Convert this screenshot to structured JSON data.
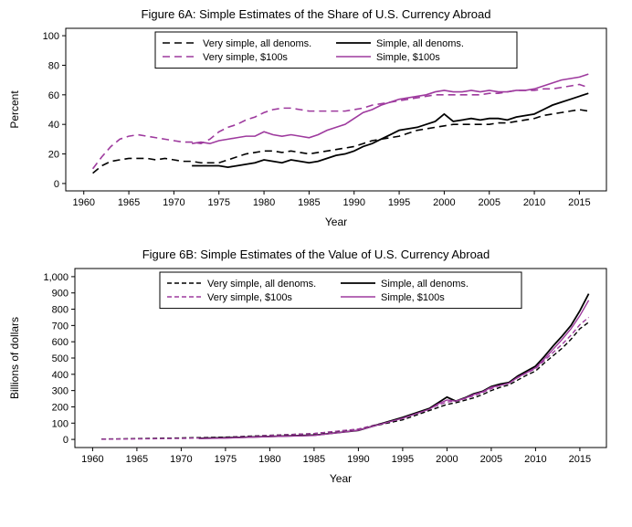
{
  "figure_a": {
    "title": "Figure 6A: Simple Estimates of the Share of U.S. Currency Abroad",
    "type": "line",
    "xlabel": "Year",
    "ylabel": "Percent",
    "xlim": [
      1958,
      2018
    ],
    "ylim": [
      -5,
      105
    ],
    "xticks": [
      1960,
      1965,
      1970,
      1975,
      1980,
      1985,
      1990,
      1995,
      2000,
      2005,
      2010,
      2015
    ],
    "yticks": [
      0,
      20,
      40,
      60,
      80,
      100
    ],
    "background_color": "#ffffff",
    "grid_color": "#000000",
    "title_fontsize": 13,
    "label_fontsize": 12,
    "tick_fontsize": 11,
    "legend": {
      "position": "top-center-inside",
      "items": [
        {
          "label": "Very simple, all denoms.",
          "color": "#000000",
          "dash": "8,5",
          "width": 1.6
        },
        {
          "label": "Simple, all denoms.",
          "color": "#000000",
          "dash": "",
          "width": 1.8
        },
        {
          "label": "Very simple, $100s",
          "color": "#9e3a9e",
          "dash": "8,5",
          "width": 1.6
        },
        {
          "label": "Simple, $100s",
          "color": "#9e3a9e",
          "dash": "",
          "width": 1.6
        }
      ]
    },
    "series": [
      {
        "name": "Very simple, all denoms.",
        "color": "#000000",
        "dash": "8,5",
        "width": 1.6,
        "x": [
          1961,
          1962,
          1963,
          1964,
          1965,
          1966,
          1967,
          1968,
          1969,
          1970,
          1971,
          1972,
          1973,
          1974,
          1975,
          1976,
          1977,
          1978,
          1979,
          1980,
          1981,
          1982,
          1983,
          1984,
          1985,
          1986,
          1987,
          1988,
          1989,
          1990,
          1991,
          1992,
          1993,
          1994,
          1995,
          1996,
          1997,
          1998,
          1999,
          2000,
          2001,
          2002,
          2003,
          2004,
          2005,
          2006,
          2007,
          2008,
          2009,
          2010,
          2011,
          2012,
          2013,
          2014,
          2015,
          2016
        ],
        "y": [
          7,
          12,
          15,
          16,
          17,
          17,
          17,
          16,
          17,
          16,
          15,
          15,
          14,
          14,
          14,
          16,
          18,
          20,
          21,
          22,
          22,
          21,
          22,
          21,
          20,
          21,
          22,
          23,
          24,
          25,
          27,
          29,
          30,
          31,
          32,
          34,
          36,
          37,
          38,
          39,
          40,
          40,
          40,
          40,
          40,
          41,
          41,
          42,
          43,
          44,
          46,
          47,
          48,
          49,
          50,
          49
        ]
      },
      {
        "name": "Very simple, $100s",
        "color": "#9e3a9e",
        "dash": "8,5",
        "width": 1.6,
        "x": [
          1961,
          1962,
          1963,
          1964,
          1965,
          1966,
          1967,
          1968,
          1969,
          1970,
          1971,
          1972,
          1973,
          1974,
          1975,
          1976,
          1977,
          1978,
          1979,
          1980,
          1981,
          1982,
          1983,
          1984,
          1985,
          1986,
          1987,
          1988,
          1989,
          1990,
          1991,
          1992,
          1993,
          1994,
          1995,
          1996,
          1997,
          1998,
          1999,
          2000,
          2001,
          2002,
          2003,
          2004,
          2005,
          2006,
          2007,
          2008,
          2009,
          2010,
          2011,
          2012,
          2013,
          2014,
          2015,
          2016
        ],
        "y": [
          10,
          18,
          25,
          30,
          32,
          33,
          32,
          31,
          30,
          29,
          28,
          28,
          27,
          30,
          35,
          38,
          40,
          43,
          45,
          48,
          50,
          51,
          51,
          50,
          49,
          49,
          49,
          49,
          49,
          50,
          51,
          53,
          54,
          55,
          56,
          57,
          58,
          59,
          60,
          60,
          60,
          60,
          60,
          60,
          61,
          61,
          62,
          63,
          63,
          63,
          64,
          64,
          65,
          66,
          67,
          65
        ]
      },
      {
        "name": "Simple, all denoms.",
        "color": "#000000",
        "dash": "",
        "width": 1.8,
        "x": [
          1972,
          1973,
          1974,
          1975,
          1976,
          1977,
          1978,
          1979,
          1980,
          1981,
          1982,
          1983,
          1984,
          1985,
          1986,
          1987,
          1988,
          1989,
          1990,
          1991,
          1992,
          1993,
          1994,
          1995,
          1996,
          1997,
          1998,
          1999,
          2000,
          2001,
          2002,
          2003,
          2004,
          2005,
          2006,
          2007,
          2008,
          2009,
          2010,
          2011,
          2012,
          2013,
          2014,
          2015,
          2016
        ],
        "y": [
          12,
          12,
          12,
          12,
          11,
          12,
          13,
          14,
          16,
          15,
          14,
          16,
          15,
          14,
          15,
          17,
          19,
          20,
          22,
          25,
          27,
          30,
          33,
          36,
          37,
          38,
          40,
          42,
          47,
          42,
          43,
          44,
          43,
          44,
          44,
          43,
          45,
          46,
          47,
          50,
          53,
          55,
          57,
          59,
          61
        ]
      },
      {
        "name": "Simple, $100s",
        "color": "#9e3a9e",
        "dash": "",
        "width": 1.6,
        "x": [
          1972,
          1973,
          1974,
          1975,
          1976,
          1977,
          1978,
          1979,
          1980,
          1981,
          1982,
          1983,
          1984,
          1985,
          1986,
          1987,
          1988,
          1989,
          1990,
          1991,
          1992,
          1993,
          1994,
          1995,
          1996,
          1997,
          1998,
          1999,
          2000,
          2001,
          2002,
          2003,
          2004,
          2005,
          2006,
          2007,
          2008,
          2009,
          2010,
          2011,
          2012,
          2013,
          2014,
          2015,
          2016
        ],
        "y": [
          27,
          28,
          27,
          29,
          30,
          31,
          32,
          32,
          35,
          33,
          32,
          33,
          32,
          31,
          33,
          36,
          38,
          40,
          44,
          48,
          50,
          53,
          55,
          57,
          58,
          59,
          60,
          62,
          63,
          62,
          62,
          63,
          62,
          63,
          62,
          62,
          63,
          63,
          64,
          66,
          68,
          70,
          71,
          72,
          74
        ]
      }
    ]
  },
  "figure_b": {
    "title": "Figure 6B: Simple Estimates of the Value of U.S. Currency Abroad",
    "type": "line",
    "xlabel": "Year",
    "ylabel": "Billions of dollars",
    "xlim": [
      1958,
      2018
    ],
    "ylim": [
      -50,
      1050
    ],
    "xticks": [
      1960,
      1965,
      1970,
      1975,
      1980,
      1985,
      1990,
      1995,
      2000,
      2005,
      2010,
      2015
    ],
    "yticks": [
      0,
      100,
      200,
      300,
      400,
      500,
      600,
      700,
      800,
      900,
      1000
    ],
    "background_color": "#ffffff",
    "grid_color": "#000000",
    "title_fontsize": 13,
    "label_fontsize": 12,
    "tick_fontsize": 11,
    "legend": {
      "position": "top-center-inside",
      "items": [
        {
          "label": "Very simple, all denoms.",
          "color": "#000000",
          "dash": "5,3",
          "width": 1.4
        },
        {
          "label": "Simple, all denoms.",
          "color": "#000000",
          "dash": "",
          "width": 1.8
        },
        {
          "label": "Very simple, $100s",
          "color": "#9e3a9e",
          "dash": "5,3",
          "width": 1.4
        },
        {
          "label": "Simple, $100s",
          "color": "#9e3a9e",
          "dash": "",
          "width": 1.4
        }
      ]
    },
    "series": [
      {
        "name": "Very simple, all denoms.",
        "color": "#000000",
        "dash": "5,3",
        "width": 1.4,
        "x": [
          1961,
          1965,
          1970,
          1975,
          1980,
          1985,
          1990,
          1995,
          2000,
          2001,
          2002,
          2003,
          2004,
          2005,
          2006,
          2007,
          2008,
          2009,
          2010,
          2011,
          2012,
          2013,
          2014,
          2015,
          2016
        ],
        "y": [
          2,
          5,
          9,
          14,
          25,
          36,
          62,
          120,
          215,
          225,
          240,
          255,
          275,
          300,
          320,
          335,
          365,
          395,
          420,
          470,
          515,
          560,
          615,
          680,
          720
        ]
      },
      {
        "name": "Very simple, $100s",
        "color": "#9e3a9e",
        "dash": "5,3",
        "width": 1.4,
        "x": [
          1961,
          1965,
          1970,
          1975,
          1980,
          1985,
          1990,
          1995,
          2000,
          2001,
          2002,
          2003,
          2004,
          2005,
          2006,
          2007,
          2008,
          2009,
          2010,
          2011,
          2012,
          2013,
          2014,
          2015,
          2016
        ],
        "y": [
          1,
          3,
          6,
          12,
          24,
          36,
          64,
          130,
          230,
          235,
          250,
          268,
          288,
          312,
          332,
          348,
          380,
          408,
          435,
          485,
          535,
          585,
          640,
          705,
          750
        ]
      },
      {
        "name": "Simple, all denoms.",
        "color": "#000000",
        "dash": "",
        "width": 1.8,
        "x": [
          1972,
          1975,
          1980,
          1985,
          1990,
          1995,
          1998,
          1999,
          2000,
          2001,
          2002,
          2003,
          2004,
          2005,
          2006,
          2007,
          2008,
          2009,
          2010,
          2011,
          2012,
          2013,
          2014,
          2015,
          2016
        ],
        "y": [
          7,
          10,
          18,
          26,
          55,
          135,
          190,
          225,
          260,
          235,
          255,
          280,
          295,
          325,
          340,
          350,
          390,
          420,
          450,
          510,
          575,
          635,
          700,
          790,
          895
        ]
      },
      {
        "name": "Simple, $100s",
        "color": "#9e3a9e",
        "dash": "",
        "width": 1.4,
        "x": [
          1972,
          1975,
          1980,
          1985,
          1990,
          1995,
          1998,
          1999,
          2000,
          2001,
          2002,
          2003,
          2004,
          2005,
          2006,
          2007,
          2008,
          2009,
          2010,
          2011,
          2012,
          2013,
          2014,
          2015,
          2016
        ],
        "y": [
          5,
          8,
          17,
          24,
          56,
          130,
          185,
          218,
          242,
          235,
          252,
          275,
          292,
          320,
          332,
          345,
          382,
          410,
          440,
          495,
          555,
          615,
          680,
          760,
          855
        ]
      }
    ]
  }
}
